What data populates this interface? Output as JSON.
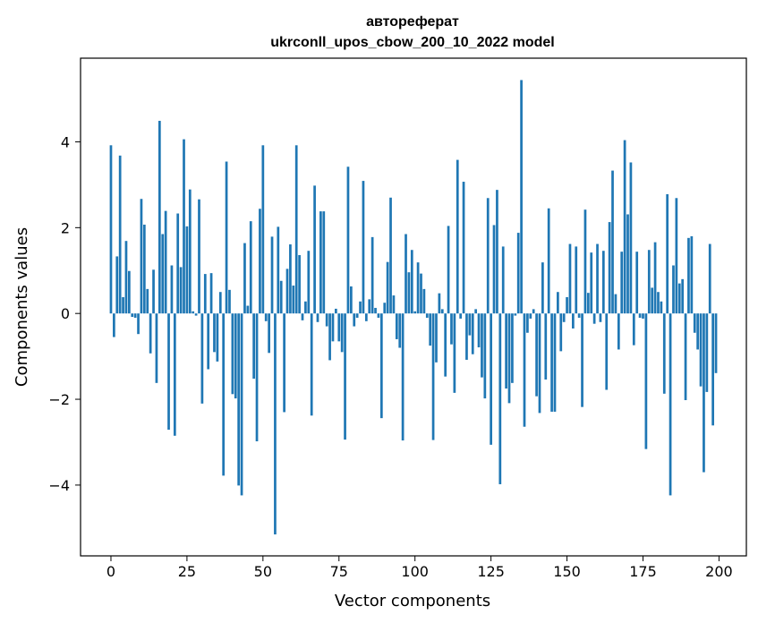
{
  "chart_data": {
    "type": "bar",
    "title_line1": "автореферат",
    "title_line2": "ukrconll_upos_cbow_200_10_2022 model",
    "xlabel": "Vector components",
    "ylabel": "Components values",
    "xlim": [
      -10,
      209
    ],
    "ylim": [
      -5.65,
      5.95
    ],
    "xticks": [
      0,
      25,
      50,
      75,
      100,
      125,
      150,
      175,
      200
    ],
    "yticks": [
      -4,
      -2,
      0,
      2,
      4
    ],
    "xtick_labels": [
      "0",
      "25",
      "50",
      "75",
      "100",
      "125",
      "150",
      "175",
      "200"
    ],
    "ytick_labels": [
      "−4",
      "−2",
      "0",
      "2",
      "4"
    ],
    "bar_color": "#1f77b4",
    "grid": false,
    "legend": "none",
    "x": [
      0,
      1,
      2,
      3,
      4,
      5,
      6,
      7,
      8,
      9,
      10,
      11,
      12,
      13,
      14,
      15,
      16,
      17,
      18,
      19,
      20,
      21,
      22,
      23,
      24,
      25,
      26,
      27,
      28,
      29,
      30,
      31,
      32,
      33,
      34,
      35,
      36,
      37,
      38,
      39,
      40,
      41,
      42,
      43,
      44,
      45,
      46,
      47,
      48,
      49,
      50,
      51,
      52,
      53,
      54,
      55,
      56,
      57,
      58,
      59,
      60,
      61,
      62,
      63,
      64,
      65,
      66,
      67,
      68,
      69,
      70,
      71,
      72,
      73,
      74,
      75,
      76,
      77,
      78,
      79,
      80,
      81,
      82,
      83,
      84,
      85,
      86,
      87,
      88,
      89,
      90,
      91,
      92,
      93,
      94,
      95,
      96,
      97,
      98,
      99,
      100,
      101,
      102,
      103,
      104,
      105,
      106,
      107,
      108,
      109,
      110,
      111,
      112,
      113,
      114,
      115,
      116,
      117,
      118,
      119,
      120,
      121,
      122,
      123,
      124,
      125,
      126,
      127,
      128,
      129,
      130,
      131,
      132,
      133,
      134,
      135,
      136,
      137,
      138,
      139,
      140,
      141,
      142,
      143,
      144,
      145,
      146,
      147,
      148,
      149,
      150,
      151,
      152,
      153,
      154,
      155,
      156,
      157,
      158,
      159,
      160,
      161,
      162,
      163,
      164,
      165,
      166,
      167,
      168,
      169,
      170,
      171,
      172,
      173,
      174,
      175,
      176,
      177,
      178,
      179,
      180,
      181,
      182,
      183,
      184,
      185,
      186,
      187,
      188,
      189,
      190,
      191,
      192,
      193,
      194,
      195,
      196,
      197,
      198,
      199
    ],
    "values": [
      3.92,
      -0.55,
      1.33,
      3.68,
      0.38,
      1.69,
      0.99,
      -0.08,
      -0.1,
      -0.48,
      2.67,
      2.07,
      0.57,
      -0.93,
      1.02,
      -1.62,
      4.49,
      1.85,
      2.39,
      -2.71,
      1.12,
      -2.85,
      2.33,
      1.08,
      4.06,
      2.03,
      2.89,
      0.05,
      -0.05,
      2.66,
      -2.1,
      0.92,
      -1.3,
      0.94,
      -0.9,
      -1.12,
      0.5,
      -3.78,
      3.54,
      0.55,
      -1.88,
      -1.98,
      -4.01,
      -4.24,
      1.64,
      0.18,
      2.15,
      -1.52,
      -2.98,
      2.44,
      3.92,
      -0.18,
      -0.92,
      1.79,
      -5.15,
      2.02,
      0.76,
      -2.3,
      1.04,
      1.61,
      0.65,
      3.92,
      1.36,
      -0.16,
      0.28,
      1.46,
      -2.38,
      2.98,
      -0.2,
      2.38,
      2.38,
      -0.3,
      -1.09,
      -0.65,
      0.11,
      -0.65,
      -0.9,
      -2.94,
      3.42,
      0.63,
      -0.3,
      -0.1,
      0.28,
      3.09,
      -0.18,
      0.33,
      1.78,
      0.13,
      -0.1,
      -2.44,
      0.25,
      1.2,
      2.7,
      0.42,
      -0.6,
      -0.8,
      -2.96,
      1.85,
      0.96,
      1.48,
      0.05,
      1.19,
      0.93,
      0.57,
      -0.1,
      -0.75,
      -2.95,
      -1.14,
      0.47,
      0.1,
      -1.47,
      2.04,
      -0.72,
      -1.85,
      3.58,
      -0.12,
      3.07,
      -1.08,
      -0.51,
      -0.95,
      0.1,
      -0.79,
      -1.49,
      -1.98,
      2.69,
      -3.06,
      2.06,
      2.88,
      -3.98,
      1.56,
      -1.75,
      -2.09,
      -1.62,
      -0.05,
      1.88,
      5.44,
      -2.64,
      -0.45,
      -0.12,
      0.1,
      -1.93,
      -2.32,
      1.19,
      -1.54,
      2.45,
      -2.29,
      -2.29,
      0.5,
      -0.88,
      -0.2,
      0.38,
      1.62,
      -0.35,
      1.56,
      -0.1,
      -2.18,
      2.42,
      0.48,
      1.42,
      -0.24,
      1.62,
      -0.2,
      1.46,
      -1.78,
      2.13,
      3.33,
      0.45,
      -0.84,
      1.44,
      4.04,
      2.31,
      3.52,
      -0.74,
      1.44,
      -0.1,
      -0.12,
      -3.16,
      1.48,
      0.6,
      1.66,
      0.5,
      0.28,
      -1.87,
      2.78,
      -4.24,
      1.12,
      2.69,
      0.7,
      0.8,
      -2.02,
      1.76,
      1.8,
      -0.45,
      -0.84,
      -1.7,
      -3.7,
      -1.83,
      1.62,
      -2.61,
      -1.39
    ]
  }
}
